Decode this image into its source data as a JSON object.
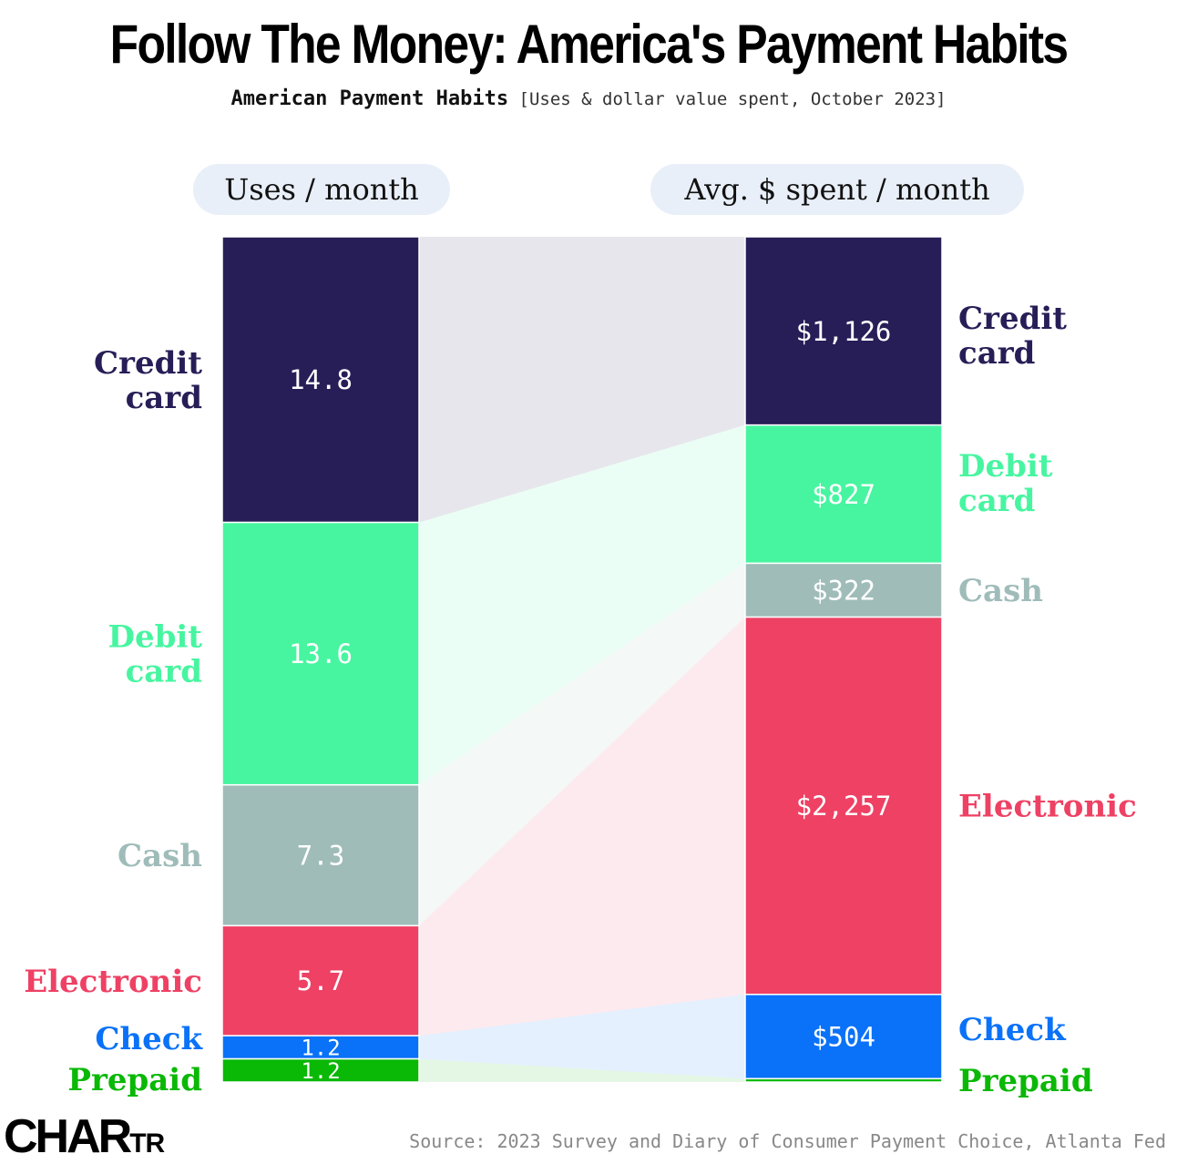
{
  "title": "Follow The Money: America's Payment Habits",
  "subtitle_bold": "American Payment Habits",
  "subtitle_rest": "[Uses & dollar value spent, October 2023]",
  "left_header": "Uses / month",
  "right_header": "Avg. $ spent / month",
  "source": "Source: 2023 Survey and Diary of Consumer Payment Choice, Atlanta Fed",
  "logo": {
    "main": "CHAR",
    "small": "TR"
  },
  "chart_data": {
    "type": "bar",
    "subtype": "stacked-bar-comparison",
    "categories": [
      "Credit card",
      "Debit card",
      "Cash",
      "Electronic",
      "Check",
      "Prepaid"
    ],
    "colors": [
      "#271e57",
      "#47f5a0",
      "#9fbcb9",
      "#ee4164",
      "#0a72f8",
      "#0ab806"
    ],
    "label_colors": [
      "#271e57",
      "#47f5a0",
      "#9fbcb9",
      "#ee4164",
      "#0a72f8",
      "#0ab806"
    ],
    "series": [
      {
        "name": "Uses / month",
        "values": [
          14.8,
          13.6,
          7.3,
          5.7,
          1.2,
          1.2
        ],
        "labels": [
          "14.8",
          "13.6",
          "7.3",
          "5.7",
          "1.2",
          "1.2"
        ]
      },
      {
        "name": "Avg. $ spent / month",
        "values": [
          1126,
          827,
          322,
          2257,
          504,
          20
        ],
        "labels": [
          "$1,126",
          "$827",
          "$322",
          "$2,257",
          "$504",
          ""
        ]
      }
    ],
    "left_category_labels": [
      [
        "Credit",
        "card"
      ],
      [
        "Debit",
        "card"
      ],
      [
        "Cash"
      ],
      [
        "Electronic"
      ],
      [
        "Check"
      ],
      [
        "Prepaid"
      ]
    ],
    "right_category_labels": [
      [
        "Credit",
        "card"
      ],
      [
        "Debit",
        "card"
      ],
      [
        "Cash"
      ],
      [
        "Electronic"
      ],
      [
        "Check"
      ],
      [
        "Prepaid"
      ]
    ]
  }
}
